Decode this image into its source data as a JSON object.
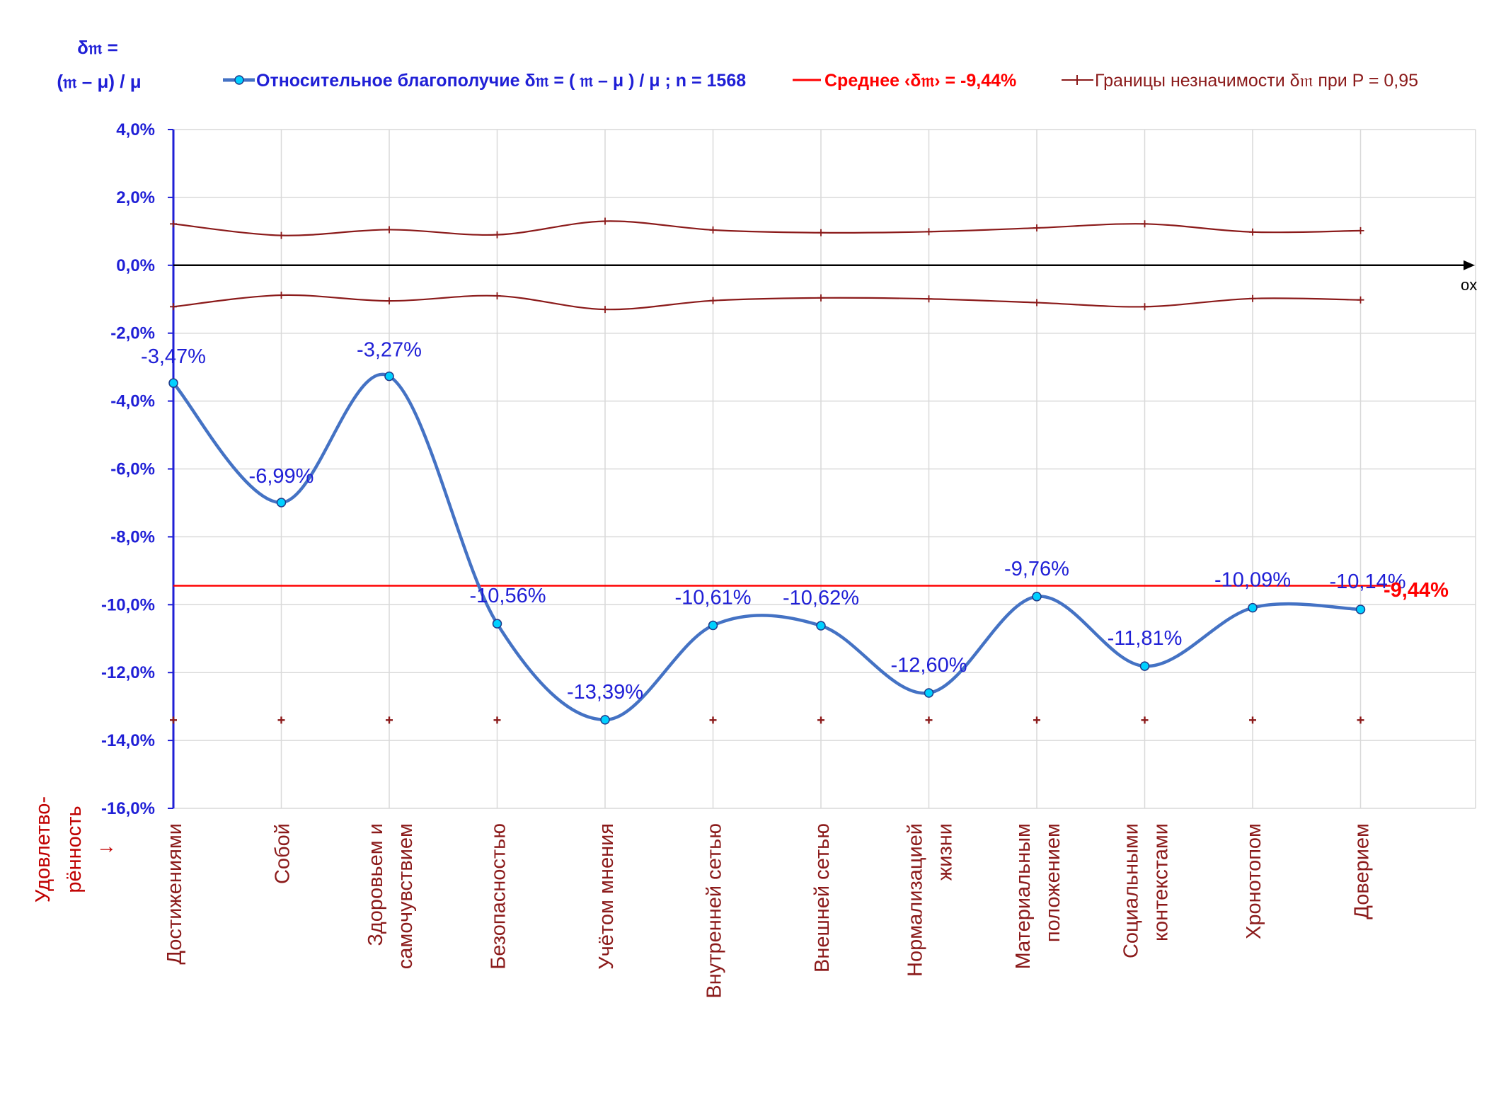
{
  "chart_data": {
    "type": "line",
    "y_axis_title": [
      "δ𝔪 =",
      "(𝔪 – μ) / μ"
    ],
    "x_axis_title": [
      "Удовлетво-",
      "рённость",
      "↓"
    ],
    "x_axis_end_label": "ox",
    "ylim": [
      -16,
      4
    ],
    "y_ticks": [
      "4,0%",
      "2,0%",
      "0,0%",
      "-2,0%",
      "-4,0%",
      "-6,0%",
      "-8,0%",
      "-10,0%",
      "-12,0%",
      "-14,0%",
      "-16,0%"
    ],
    "categories": [
      [
        "Достижениями"
      ],
      [
        "Собой"
      ],
      [
        "Здоровьем и",
        "самочувствием"
      ],
      [
        "Безопасностью"
      ],
      [
        "Учётом мнения"
      ],
      [
        "Внутренней сетью"
      ],
      [
        "Внешней сетью"
      ],
      [
        "Нормализацией",
        "жизни"
      ],
      [
        "Материальным",
        "положением"
      ],
      [
        "Социальными",
        "контекстами"
      ],
      [
        "Хронотопом"
      ],
      [
        "Доверием"
      ]
    ],
    "legend": {
      "main": "Относительное благополучие δ𝔪 = ( 𝔪 – μ ) / μ ; n = 1568",
      "mean": "Среднее ‹δ𝔪› = -9,44%",
      "bounds": "Границы незначимости δ𝔪 при P = 0,95"
    },
    "series": [
      {
        "name": "Относительное благополучие δ𝔪 = ( 𝔪 – μ ) / μ ; n = 1568",
        "values": [
          -3.47,
          -6.99,
          -3.27,
          -10.56,
          -13.39,
          -10.61,
          -10.62,
          -12.6,
          -9.76,
          -11.81,
          -10.09,
          -10.14
        ],
        "labels": [
          "-3,47%",
          "-6,99%",
          "-3,27%",
          "-10,56%",
          "-13,39%",
          "-10,61%",
          "-10,62%",
          "-12,60%",
          "-9,76%",
          "-11,81%",
          "-10,09%",
          "-10,14%"
        ],
        "color": "#4472c4"
      },
      {
        "name": "Среднее ‹δ𝔪› = -9,44%",
        "value": -9.44,
        "label": "-9,44%",
        "color": "#ff0000"
      },
      {
        "name": "Границы незначимости δ𝔪 при P = 0,95",
        "upper": [
          1.22,
          0.88,
          1.05,
          0.9,
          1.3,
          1.04,
          0.96,
          0.99,
          1.1,
          1.22,
          0.98,
          1.02
        ],
        "lower": [
          -1.22,
          -0.88,
          -1.05,
          -0.9,
          -1.3,
          -1.04,
          -0.96,
          -0.99,
          -1.1,
          -1.22,
          -0.98,
          -1.02
        ],
        "baseline": -13.4,
        "color": "#8b1a1a"
      }
    ],
    "colors": {
      "axis": "#1f1fd6",
      "grid": "#d9d9d9"
    },
    "grid": true,
    "legend_position": "top"
  }
}
